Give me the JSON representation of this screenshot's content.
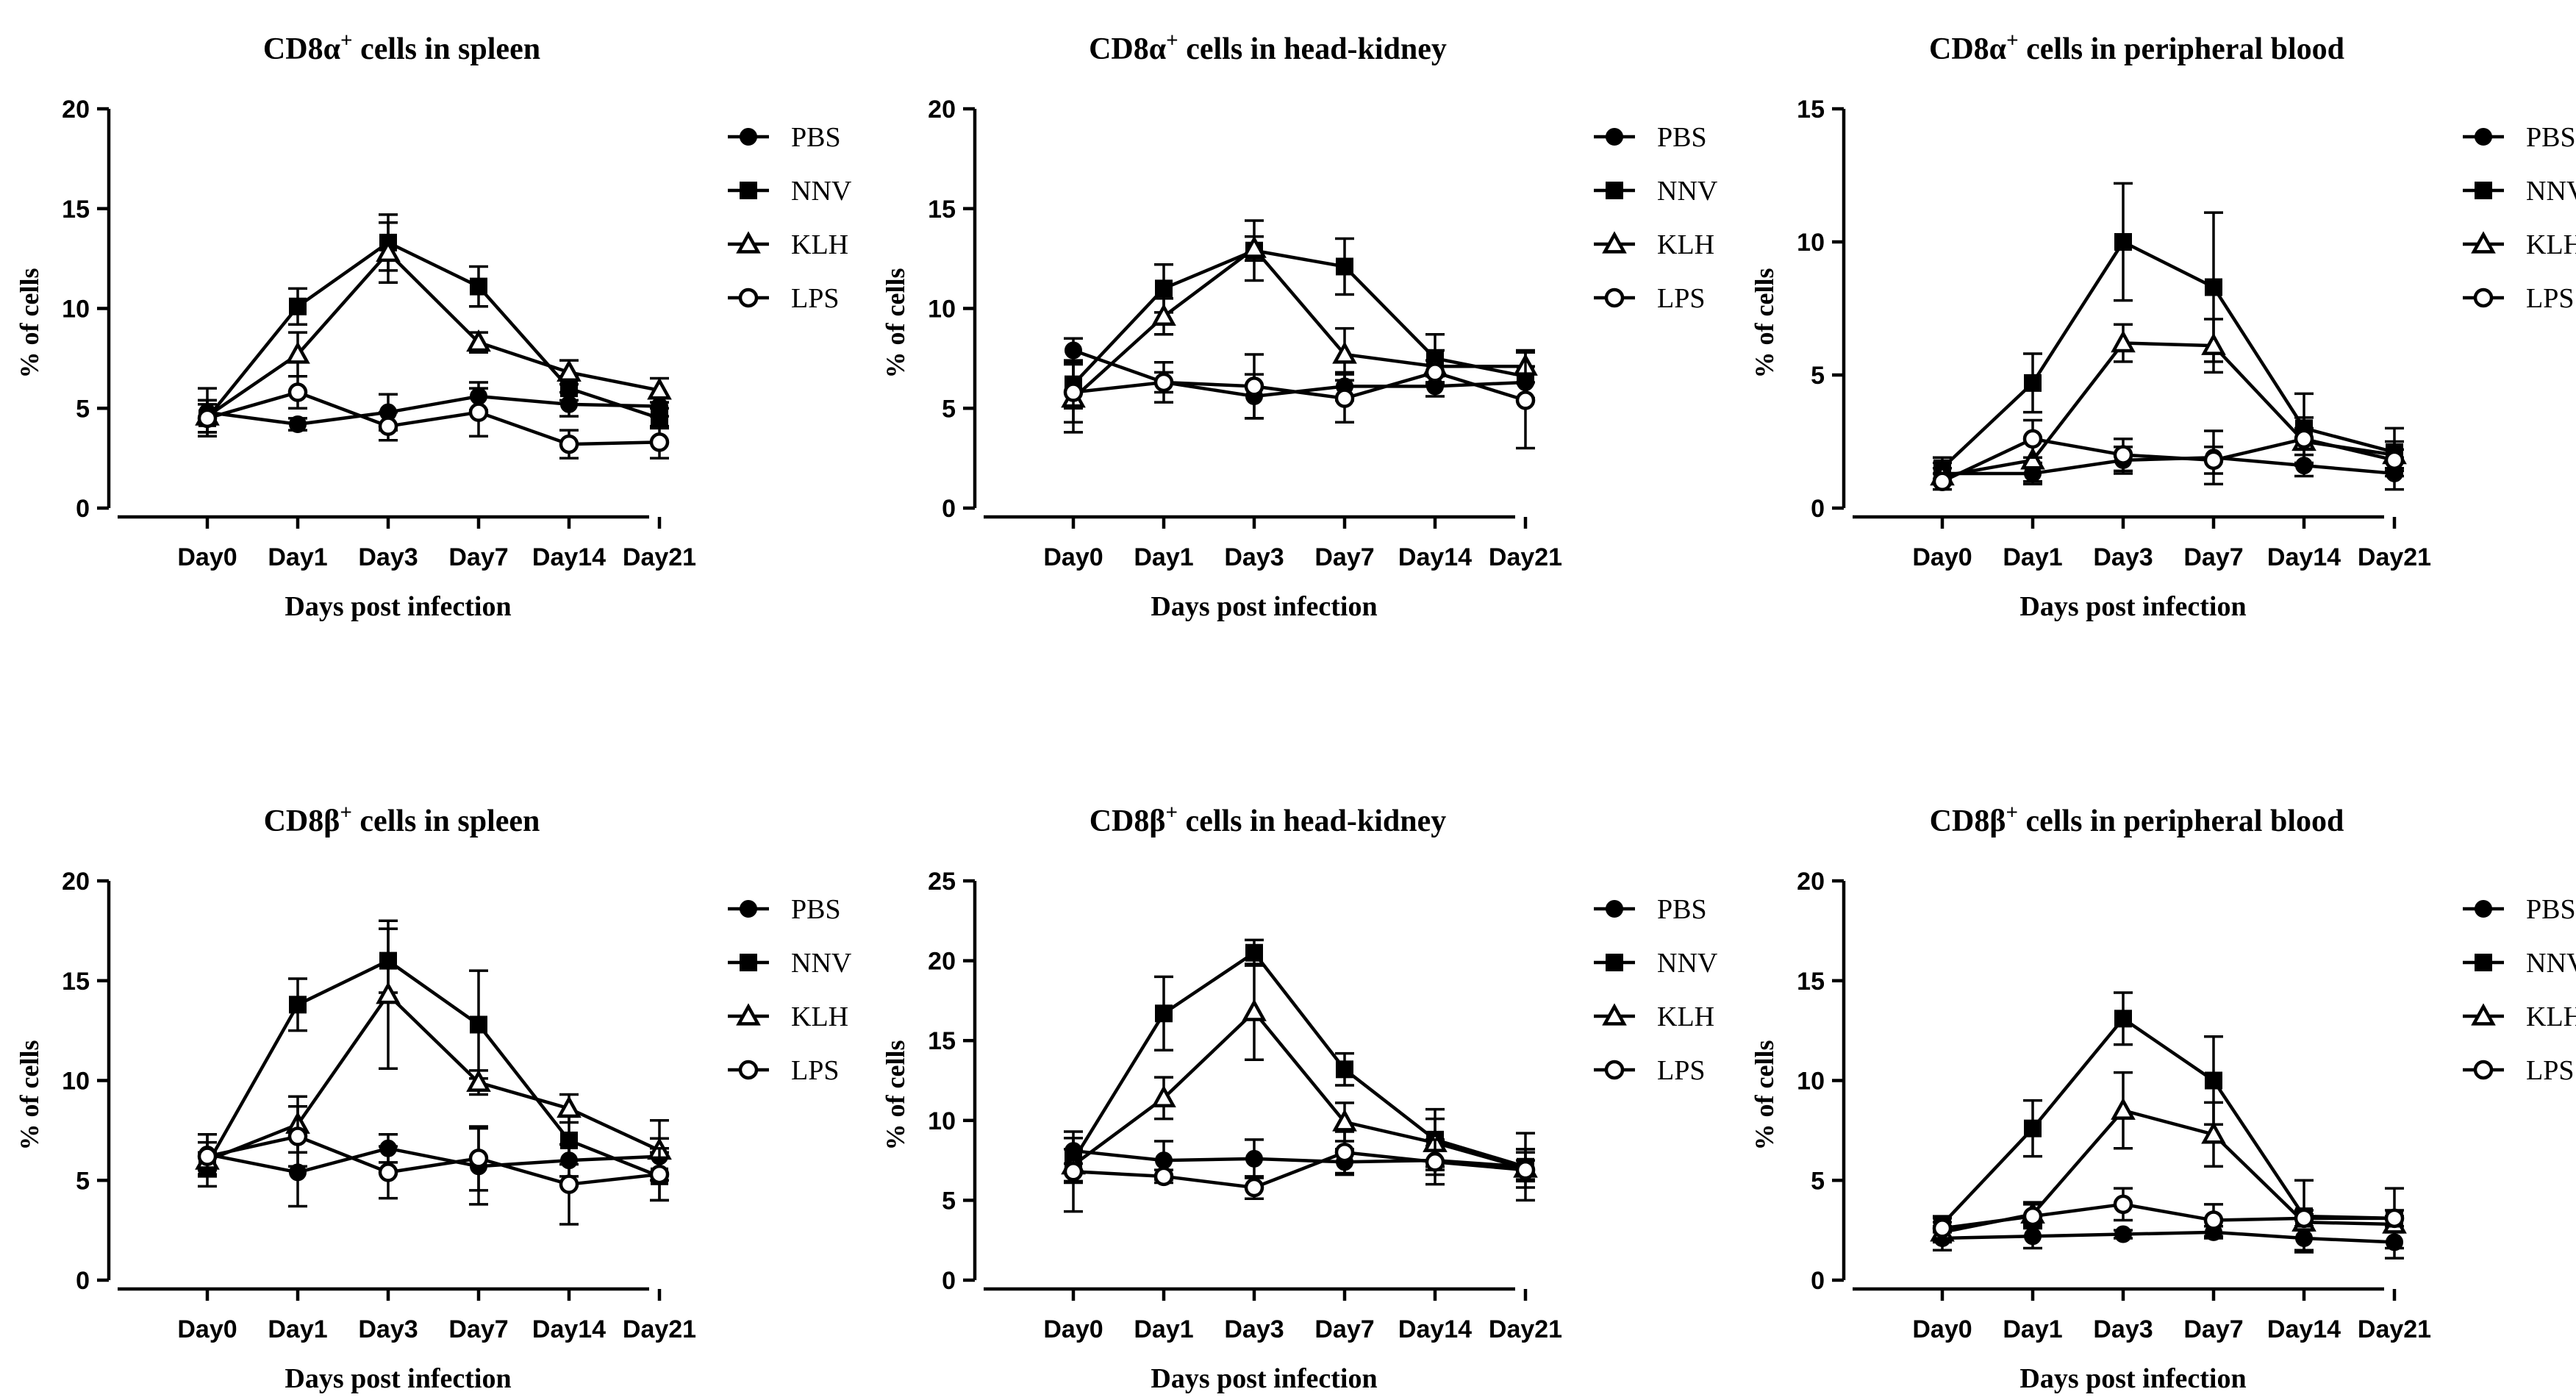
{
  "chart_data": [
    {
      "type": "line",
      "title_main": "CD8α",
      "title_sup": "+",
      "title_rest": " cells in spleen",
      "xlabel": "Days post infection",
      "ylabel": "% of cells",
      "categories": [
        "Day0",
        "Day1",
        "Day3",
        "Day7",
        "Day14",
        "Day21"
      ],
      "ylim": [
        0,
        20
      ],
      "yticks": [
        "0",
        "5",
        "10",
        "15",
        "20"
      ],
      "legend_position": "right",
      "series": [
        {
          "name": "PBS",
          "marker": "filled-circle",
          "values": [
            4.8,
            4.2,
            4.8,
            5.6,
            5.2,
            5.1
          ],
          "errors": [
            1.2,
            0.3,
            0.9,
            0.7,
            0.6,
            0.5
          ]
        },
        {
          "name": "NNV",
          "marker": "filled-square",
          "values": [
            4.5,
            10.1,
            13.3,
            11.1,
            6.0,
            4.5
          ],
          "errors": [
            0.7,
            0.9,
            1.4,
            1.0,
            0.6,
            0.5
          ]
        },
        {
          "name": "KLH",
          "marker": "open-triangle",
          "values": [
            4.6,
            7.7,
            12.8,
            8.3,
            6.8,
            5.9
          ],
          "errors": [
            0.8,
            1.1,
            1.5,
            0.5,
            0.6,
            0.6
          ]
        },
        {
          "name": "LPS",
          "marker": "open-circle",
          "values": [
            4.5,
            5.8,
            4.1,
            4.8,
            3.2,
            3.3
          ],
          "errors": [
            0.9,
            0.8,
            0.7,
            1.2,
            0.7,
            0.8
          ]
        }
      ]
    },
    {
      "type": "line",
      "title_main": "CD8α",
      "title_sup": "+",
      "title_rest": " cells in head-kidney",
      "xlabel": "Days post infection",
      "ylabel": "% of cells",
      "categories": [
        "Day0",
        "Day1",
        "Day3",
        "Day7",
        "Day14",
        "Day21"
      ],
      "ylim": [
        0,
        20
      ],
      "yticks": [
        "0",
        "5",
        "10",
        "15",
        "20"
      ],
      "legend_position": "right",
      "series": [
        {
          "name": "PBS",
          "marker": "filled-circle",
          "values": [
            7.9,
            6.3,
            5.6,
            6.1,
            6.1,
            6.3
          ],
          "errors": [
            0.6,
            0.5,
            1.1,
            0.7,
            0.5,
            0.8
          ]
        },
        {
          "name": "NNV",
          "marker": "filled-square",
          "values": [
            6.2,
            11.0,
            12.9,
            12.1,
            7.5,
            6.6
          ],
          "errors": [
            1.2,
            1.2,
            1.5,
            1.4,
            1.2,
            1.2
          ]
        },
        {
          "name": "KLH",
          "marker": "open-triangle",
          "values": [
            5.5,
            9.6,
            13.0,
            7.7,
            7.1,
            7.1
          ],
          "errors": [
            1.7,
            0.9,
            0.6,
            1.3,
            0.8,
            0.8
          ]
        },
        {
          "name": "LPS",
          "marker": "open-circle",
          "values": [
            5.8,
            6.3,
            6.1,
            5.5,
            6.8,
            5.4
          ],
          "errors": [
            1.5,
            1.0,
            1.6,
            1.2,
            0.6,
            2.4
          ]
        }
      ]
    },
    {
      "type": "line",
      "title_main": "CD8α",
      "title_sup": "+",
      "title_rest": " cells in peripheral blood",
      "xlabel": "Days post infection",
      "ylabel": "% of cells",
      "categories": [
        "Day0",
        "Day1",
        "Day3",
        "Day7",
        "Day14",
        "Day21"
      ],
      "ylim": [
        0,
        15
      ],
      "yticks": [
        "0",
        "5",
        "10",
        "15"
      ],
      "legend_position": "right",
      "series": [
        {
          "name": "PBS",
          "marker": "filled-circle",
          "values": [
            1.3,
            1.3,
            1.8,
            1.9,
            1.6,
            1.3
          ],
          "errors": [
            0.4,
            0.4,
            0.5,
            1.0,
            0.4,
            0.6
          ]
        },
        {
          "name": "NNV",
          "marker": "filled-square",
          "values": [
            1.5,
            4.7,
            10.0,
            8.3,
            3.0,
            2.1
          ],
          "errors": [
            0.4,
            1.1,
            2.2,
            2.8,
            1.3,
            0.9
          ]
        },
        {
          "name": "KLH",
          "marker": "open-triangle",
          "values": [
            1.2,
            1.8,
            6.2,
            6.1,
            2.5,
            2.0
          ],
          "errors": [
            0.3,
            0.8,
            0.7,
            1.0,
            0.9,
            0.5
          ]
        },
        {
          "name": "LPS",
          "marker": "open-circle",
          "values": [
            1.0,
            2.6,
            2.0,
            1.8,
            2.6,
            1.8
          ],
          "errors": [
            0.3,
            0.7,
            0.6,
            0.5,
            0.4,
            0.4
          ]
        }
      ]
    },
    {
      "type": "line",
      "title_main": "CD8β",
      "title_sup": "+",
      "title_rest": " cells in spleen",
      "xlabel": "Days post infection",
      "ylabel": "% of cells",
      "categories": [
        "Day0",
        "Day1",
        "Day3",
        "Day7",
        "Day14",
        "Day21"
      ],
      "ylim": [
        0,
        20
      ],
      "yticks": [
        "0",
        "5",
        "10",
        "15",
        "20"
      ],
      "legend_position": "right",
      "series": [
        {
          "name": "PBS",
          "marker": "filled-circle",
          "values": [
            6.3,
            5.4,
            6.6,
            5.7,
            6.0,
            6.2
          ],
          "errors": [
            1.0,
            1.7,
            0.7,
            1.9,
            0.8,
            0.9
          ]
        },
        {
          "name": "NNV",
          "marker": "filled-square",
          "values": [
            5.8,
            13.8,
            16.0,
            12.8,
            7.0,
            5.2
          ],
          "errors": [
            0.6,
            1.3,
            1.6,
            2.7,
            1.2,
            1.2
          ]
        },
        {
          "name": "KLH",
          "marker": "open-triangle",
          "values": [
            6.0,
            7.8,
            14.3,
            9.9,
            8.6,
            6.5
          ],
          "errors": [
            1.3,
            1.4,
            3.7,
            0.6,
            0.7,
            1.5
          ]
        },
        {
          "name": "LPS",
          "marker": "open-circle",
          "values": [
            6.2,
            7.2,
            5.4,
            6.1,
            4.8,
            5.3
          ],
          "errors": [
            0.7,
            1.5,
            1.3,
            1.6,
            2.0,
            1.3
          ]
        }
      ]
    },
    {
      "type": "line",
      "title_main": "CD8β",
      "title_sup": "+",
      "title_rest": " cells in head-kidney",
      "xlabel": "Days post infection",
      "ylabel": "% of cells",
      "categories": [
        "Day0",
        "Day1",
        "Day3",
        "Day7",
        "Day14",
        "Day21"
      ],
      "ylim": [
        0,
        25
      ],
      "yticks": [
        "0",
        "5",
        "10",
        "15",
        "20",
        "25"
      ],
      "legend_position": "right",
      "series": [
        {
          "name": "PBS",
          "marker": "filled-circle",
          "values": [
            8.1,
            7.5,
            7.6,
            7.4,
            7.5,
            7.1
          ],
          "errors": [
            0.8,
            1.2,
            1.2,
            0.8,
            0.9,
            0.9
          ]
        },
        {
          "name": "NNV",
          "marker": "filled-square",
          "values": [
            7.5,
            16.7,
            20.5,
            13.2,
            8.8,
            7.1
          ],
          "errors": [
            1.4,
            2.3,
            0.8,
            1.0,
            1.9,
            2.1
          ]
        },
        {
          "name": "KLH",
          "marker": "open-triangle",
          "values": [
            7.2,
            11.4,
            16.8,
            9.9,
            8.6,
            7.0
          ],
          "errors": [
            1.0,
            1.3,
            3.0,
            1.2,
            1.5,
            1.2
          ]
        },
        {
          "name": "LPS",
          "marker": "open-circle",
          "values": [
            6.8,
            6.5,
            5.8,
            8.0,
            7.4,
            6.9
          ],
          "errors": [
            2.5,
            0.4,
            0.7,
            1.3,
            1.4,
            0.6
          ]
        }
      ]
    },
    {
      "type": "line",
      "title_main": "CD8β",
      "title_sup": "+",
      "title_rest": " cells in peripheral blood",
      "xlabel": "Days post infection",
      "ylabel": "% of cells",
      "categories": [
        "Day0",
        "Day1",
        "Day3",
        "Day7",
        "Day14",
        "Day21"
      ],
      "ylim": [
        0,
        20
      ],
      "yticks": [
        "0",
        "5",
        "10",
        "15",
        "20"
      ],
      "legend_position": "right",
      "series": [
        {
          "name": "PBS",
          "marker": "filled-circle",
          "values": [
            2.1,
            2.2,
            2.3,
            2.4,
            2.1,
            1.9
          ],
          "errors": [
            0.6,
            0.6,
            0.2,
            0.3,
            0.6,
            0.8
          ]
        },
        {
          "name": "NNV",
          "marker": "filled-square",
          "values": [
            2.8,
            7.6,
            13.1,
            10.0,
            3.2,
            3.1
          ],
          "errors": [
            0.4,
            1.4,
            1.3,
            2.2,
            1.8,
            1.5
          ]
        },
        {
          "name": "KLH",
          "marker": "open-triangle",
          "values": [
            2.4,
            3.3,
            8.5,
            7.3,
            2.9,
            2.8
          ],
          "errors": [
            0.5,
            0.6,
            1.9,
            1.6,
            0.4,
            0.4
          ]
        },
        {
          "name": "LPS",
          "marker": "open-circle",
          "values": [
            2.6,
            3.2,
            3.8,
            3.0,
            3.1,
            3.1
          ],
          "errors": [
            0.5,
            0.6,
            0.8,
            0.8,
            0.4,
            0.4
          ]
        }
      ]
    }
  ]
}
